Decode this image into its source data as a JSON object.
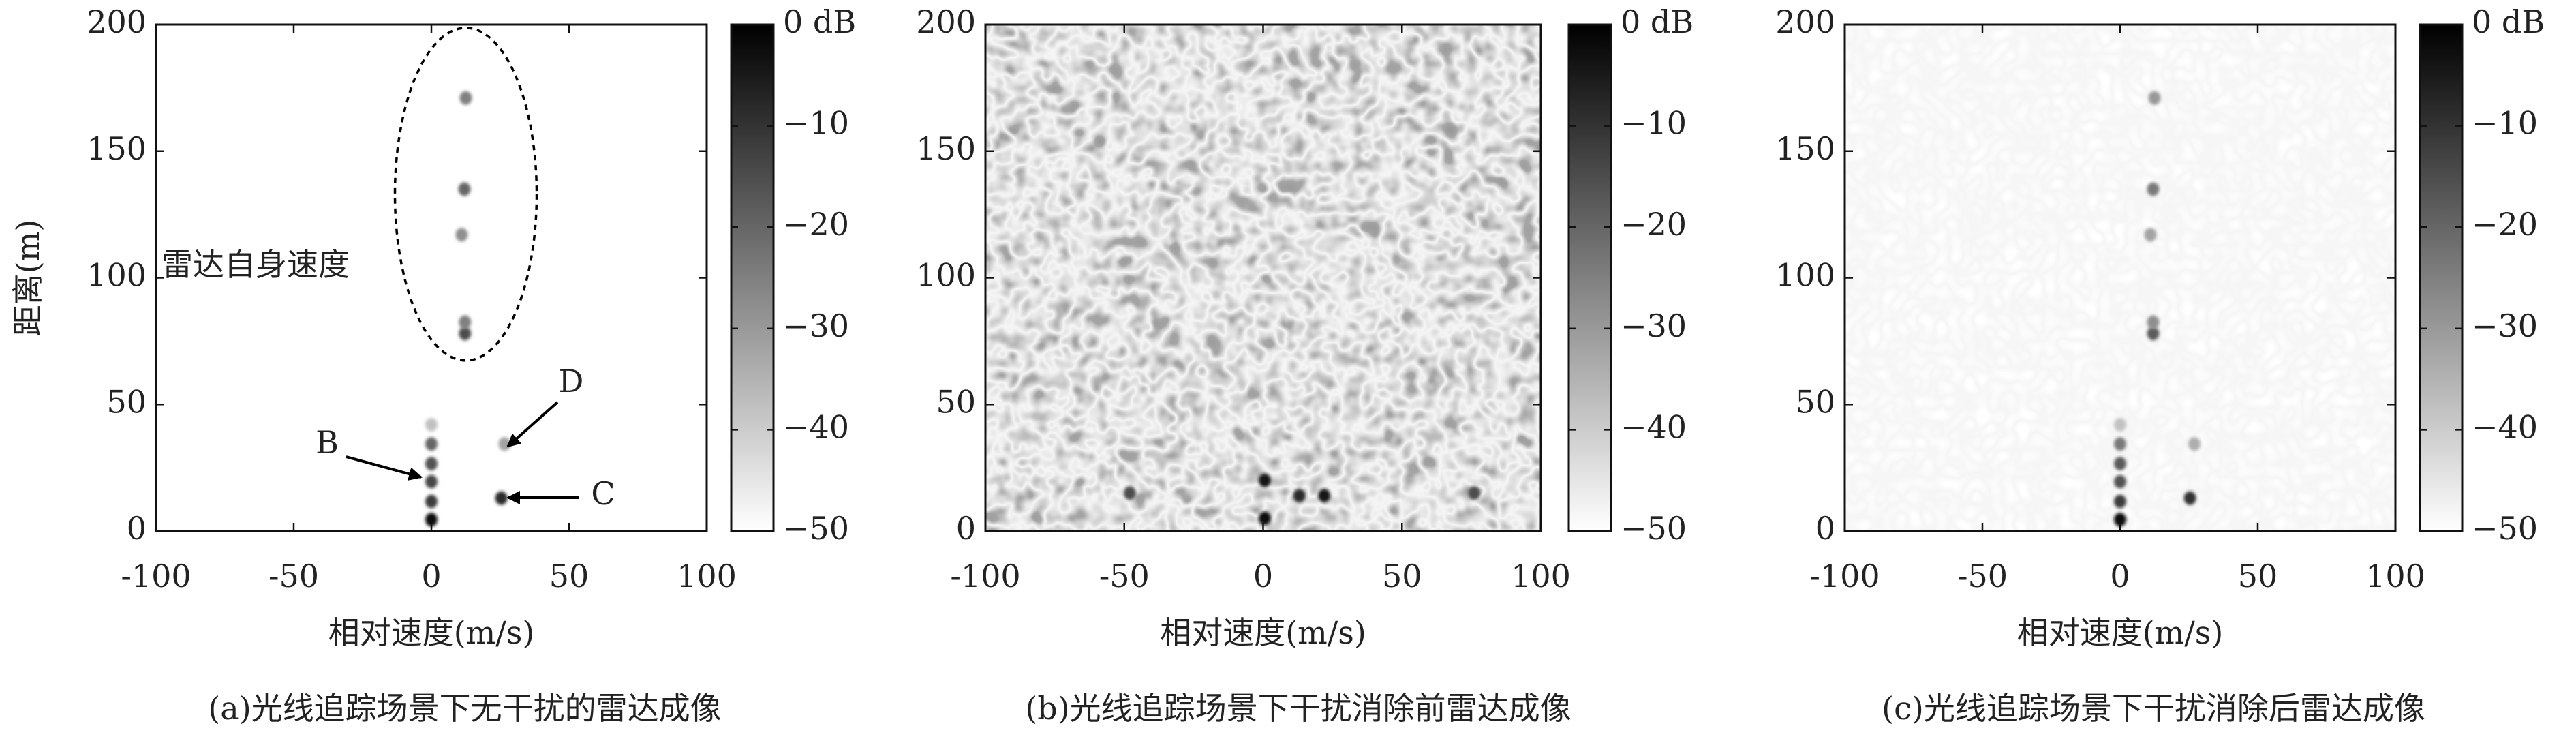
{
  "chart_data": [
    {
      "type": "heatmap-points",
      "caption": "(a)光线追踪场景下无干扰的雷达成像",
      "xlabel": "相对速度(m/s)",
      "ylabel": "距离(m)",
      "xlim": [
        -100,
        100
      ],
      "xticks": [
        -100,
        -50,
        0,
        50,
        100
      ],
      "ylim": [
        0,
        200
      ],
      "yticks": [
        0,
        50,
        100,
        150,
        200
      ],
      "zlim": [
        -50,
        0
      ],
      "zticks": [
        {
          "value": 0,
          "label": "0 dB"
        },
        {
          "value": -10,
          "label": "−10"
        },
        {
          "value": -20,
          "label": "−20"
        },
        {
          "value": -30,
          "label": "−30"
        },
        {
          "value": -40,
          "label": "−40"
        },
        {
          "value": -50,
          "label": "−50"
        }
      ],
      "colormap": "gray",
      "background": "clean",
      "x": [
        0,
        0,
        0,
        0,
        0,
        0,
        25.4,
        26.6,
        12.2,
        12.2,
        11,
        12,
        12.5
      ],
      "y": [
        4.5,
        11.7,
        19.5,
        26.6,
        34.4,
        42,
        13,
        34.4,
        78,
        82.5,
        117,
        135,
        171
      ],
      "values": [
        -3,
        -12,
        -14,
        -16,
        -20,
        -38,
        -8,
        -32,
        -15,
        -25,
        -28,
        -20,
        -25
      ],
      "annotations": [
        "雷达自身速度",
        "B",
        "C",
        "D"
      ]
    },
    {
      "type": "heatmap-points",
      "caption": "(b)光线追踪场景下干扰消除前雷达成像",
      "xlabel": "相对速度(m/s)",
      "xlim": [
        -100,
        100
      ],
      "xticks": [
        -100,
        -50,
        0,
        50,
        100
      ],
      "ylim": [
        0,
        200
      ],
      "yticks": [
        0,
        50,
        100,
        150,
        200
      ],
      "zlim": [
        -50,
        0
      ],
      "zticks": [
        {
          "value": 0,
          "label": "0 dB"
        },
        {
          "value": -10,
          "label": "−10"
        },
        {
          "value": -20,
          "label": "−20"
        },
        {
          "value": -30,
          "label": "−30"
        },
        {
          "value": -40,
          "label": "−40"
        },
        {
          "value": -50,
          "label": "−50"
        }
      ],
      "colormap": "gray",
      "background": "interference",
      "x": [
        0.6,
        0.6,
        13,
        22,
        -48,
        76
      ],
      "y": [
        5,
        20,
        14,
        14,
        15,
        15
      ],
      "values": [
        -2,
        -5,
        -8,
        -5,
        -15,
        -15
      ]
    },
    {
      "type": "heatmap-points",
      "caption": "(c)光线追踪场景下干扰消除后雷达成像",
      "xlabel": "相对速度(m/s)",
      "xlim": [
        -100,
        100
      ],
      "xticks": [
        -100,
        -50,
        0,
        50,
        100
      ],
      "ylim": [
        0,
        200
      ],
      "yticks": [
        0,
        50,
        100,
        150,
        200
      ],
      "zlim": [
        -50,
        0
      ],
      "zticks": [
        {
          "value": 0,
          "label": "0 dB"
        },
        {
          "value": -10,
          "label": "−10"
        },
        {
          "value": -20,
          "label": "−20"
        },
        {
          "value": -30,
          "label": "−30"
        },
        {
          "value": -40,
          "label": "−40"
        },
        {
          "value": -50,
          "label": "−50"
        }
      ],
      "colormap": "gray",
      "background": "residual",
      "x": [
        0,
        0,
        0,
        0,
        0,
        0,
        25.4,
        27,
        12,
        12,
        11,
        12,
        12.5
      ],
      "y": [
        4.5,
        11.7,
        19.5,
        26.6,
        34.4,
        42,
        13,
        34.4,
        78,
        82.5,
        117,
        135,
        171
      ],
      "values": [
        -3,
        -12,
        -16,
        -18,
        -24,
        -38,
        -10,
        -34,
        -18,
        -28,
        -32,
        -24,
        -30
      ]
    }
  ]
}
